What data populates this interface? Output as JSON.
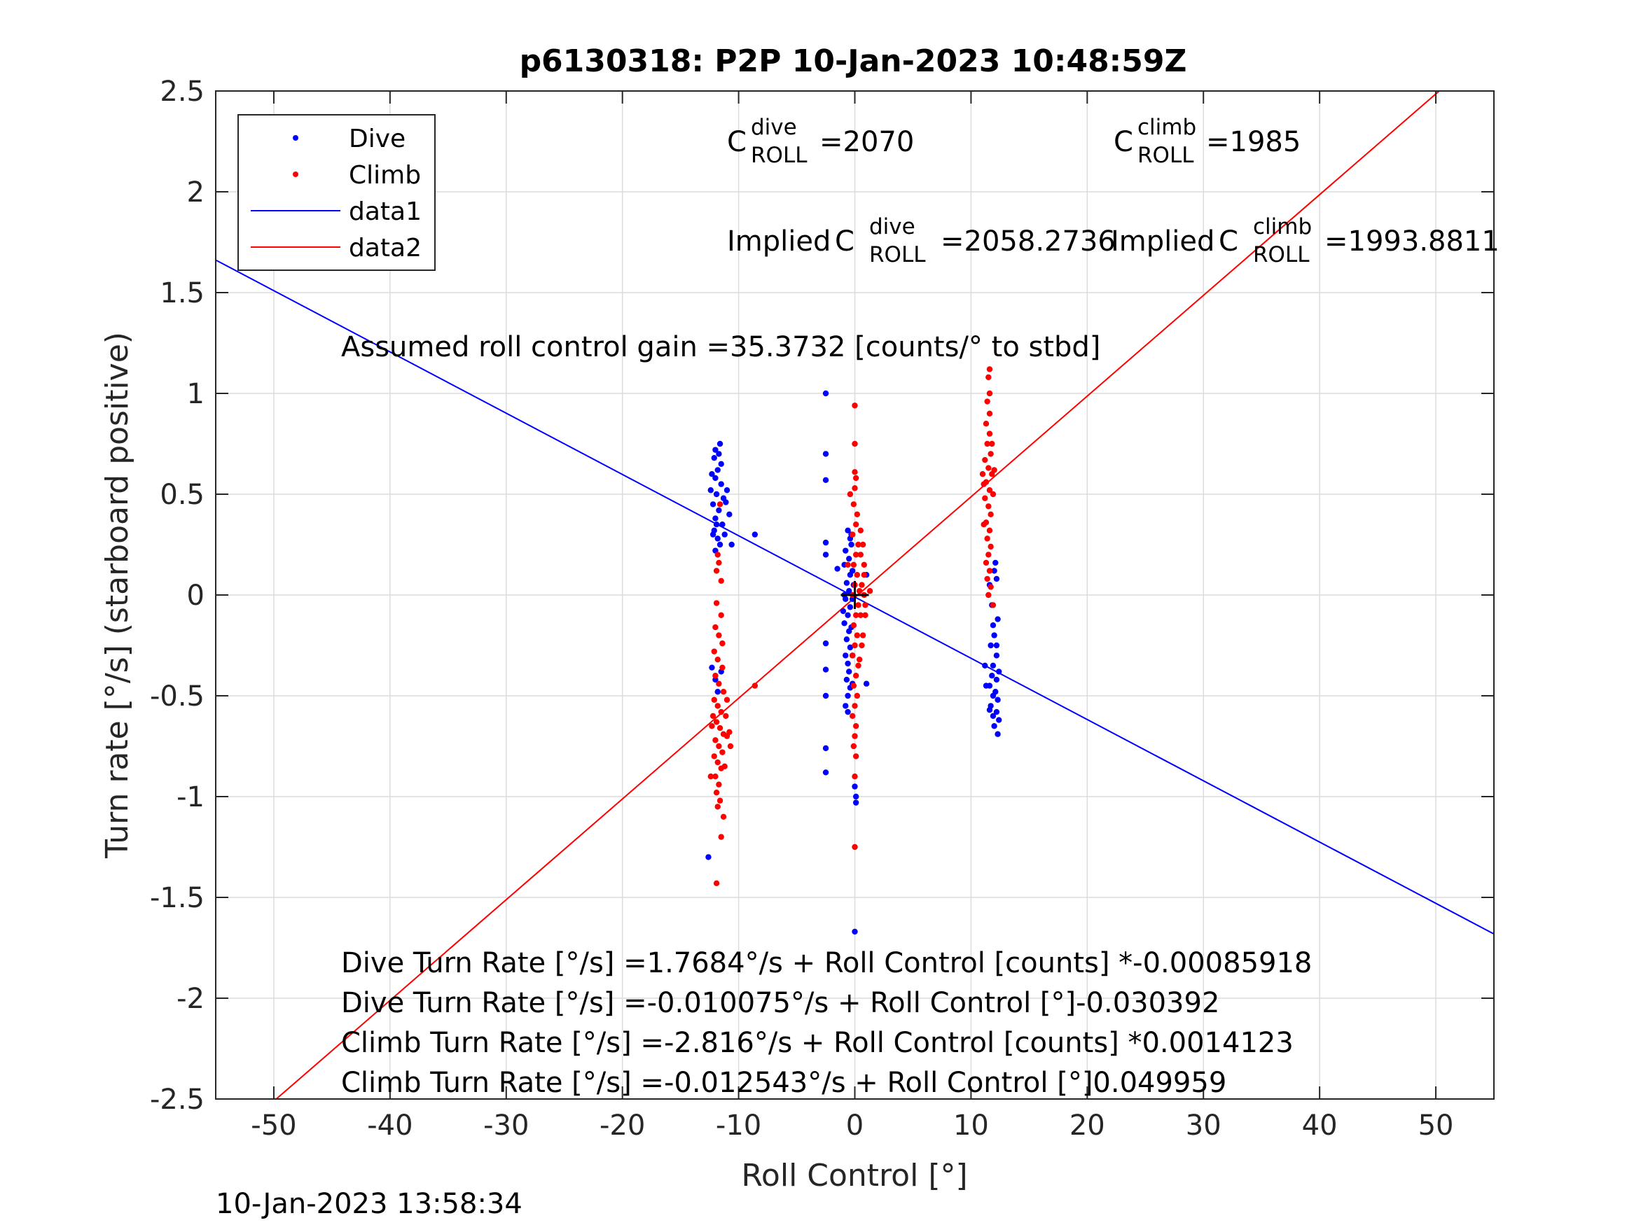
{
  "chart_data": {
    "type": "scatter",
    "title": "p6130318: P2P 10-Jan-2023 10:48:59Z",
    "xlabel": "Roll Control [°]",
    "ylabel": "Turn rate [°/s] (starboard positive)",
    "xlim": [
      -55,
      55
    ],
    "ylim": [
      -2.5,
      2.5
    ],
    "xticks": [
      -50,
      -40,
      -30,
      -20,
      -10,
      0,
      10,
      20,
      30,
      40,
      50
    ],
    "yticks": [
      -2.5,
      -2,
      -1.5,
      -1,
      -0.5,
      0,
      0.5,
      1,
      1.5,
      2,
      2.5
    ],
    "xtick_labels": [
      "-50",
      "-40",
      "-30",
      "-20",
      "-10",
      "0",
      "10",
      "20",
      "30",
      "40",
      "50"
    ],
    "ytick_labels": [
      "-2.5",
      "-2",
      "-1.5",
      "-1",
      "-0.5",
      "0",
      "0.5",
      "1",
      "1.5",
      "2",
      "2.5"
    ],
    "grid": true,
    "legend_location": "top-left",
    "series": [
      {
        "name": "Dive",
        "kind": "points",
        "color": "#0000ff",
        "points": [
          [
            -12,
            0.72
          ],
          [
            -11.6,
            0.75
          ],
          [
            -12.1,
            0.68
          ],
          [
            -11.8,
            0.62
          ],
          [
            -12,
            0.58
          ],
          [
            -11.5,
            0.55
          ],
          [
            -11.9,
            0.5
          ],
          [
            -12.2,
            0.45
          ],
          [
            -11.7,
            0.42
          ],
          [
            -12,
            0.38
          ],
          [
            -11.4,
            0.35
          ],
          [
            -12.1,
            0.32
          ],
          [
            -11.8,
            0.28
          ],
          [
            -11.6,
            0.25
          ],
          [
            -12,
            0.22
          ],
          [
            -11.3,
            0.48
          ],
          [
            -11.5,
            0.65
          ],
          [
            -12.3,
            0.6
          ],
          [
            -11.2,
            0.3
          ],
          [
            -11,
            0.52
          ],
          [
            -10.6,
            0.25
          ],
          [
            -10.8,
            0.4
          ],
          [
            -11.1,
            0.46
          ],
          [
            -12.4,
            0.52
          ],
          [
            -12.2,
            0.3
          ],
          [
            -11.7,
            0.7
          ],
          [
            -11.9,
            0.35
          ],
          [
            -8.6,
            0.3
          ],
          [
            -12.3,
            -0.36
          ],
          [
            -12,
            -0.42
          ],
          [
            -11.5,
            -0.38
          ],
          [
            -11.8,
            -0.48
          ],
          [
            -12.6,
            -1.3
          ],
          [
            -2.5,
            1.0
          ],
          [
            -2.5,
            0.7
          ],
          [
            -2.5,
            0.57
          ],
          [
            -2.5,
            0.26
          ],
          [
            -2.5,
            0.2
          ],
          [
            -1.5,
            0.13
          ],
          [
            -2.5,
            -0.24
          ],
          [
            -2.5,
            -0.37
          ],
          [
            -2.5,
            -0.5
          ],
          [
            -2.5,
            -0.76
          ],
          [
            -2.5,
            -0.88
          ],
          [
            -0.6,
            0.32
          ],
          [
            -0.4,
            0.28
          ],
          [
            -0.8,
            0.22
          ],
          [
            -0.5,
            0.18
          ],
          [
            -0.9,
            0.15
          ],
          [
            -0.4,
            0.1
          ],
          [
            -0.7,
            0.06
          ],
          [
            -0.5,
            0.02
          ],
          [
            -0.8,
            -0.02
          ],
          [
            -0.4,
            -0.06
          ],
          [
            -0.6,
            -0.1
          ],
          [
            -0.9,
            -0.14
          ],
          [
            -0.5,
            -0.18
          ],
          [
            -0.7,
            -0.22
          ],
          [
            -0.4,
            -0.26
          ],
          [
            -0.8,
            -0.3
          ],
          [
            -0.6,
            -0.34
          ],
          [
            -0.5,
            -0.38
          ],
          [
            -0.7,
            -0.42
          ],
          [
            -0.4,
            -0.46
          ],
          [
            -0.6,
            -0.5
          ],
          [
            -0.8,
            -0.55
          ],
          [
            -0.6,
            -0.58
          ],
          [
            -0.3,
            0.25
          ],
          [
            -0.2,
            0.12
          ],
          [
            -0.2,
            -0.02
          ],
          [
            -0.3,
            -0.16
          ],
          [
            -0.2,
            -0.3
          ],
          [
            -0.1,
            0.05
          ],
          [
            -0.9,
            0.0
          ],
          [
            -1.0,
            -0.08
          ],
          [
            -0.2,
            -0.44
          ],
          [
            -0.3,
            0.3
          ],
          [
            0.0,
            -0.95
          ],
          [
            0.1,
            -1.0
          ],
          [
            0.1,
            -1.03
          ],
          [
            0.0,
            -1.67
          ],
          [
            1.0,
            -0.44
          ],
          [
            1.0,
            0.1
          ],
          [
            11.6,
            0.05
          ],
          [
            12.1,
            0.16
          ],
          [
            12,
            0.12
          ],
          [
            12.2,
            0.08
          ],
          [
            11.8,
            -0.05
          ],
          [
            12.3,
            -0.12
          ],
          [
            12,
            -0.2
          ],
          [
            11.7,
            -0.25
          ],
          [
            12.2,
            -0.3
          ],
          [
            11.9,
            -0.35
          ],
          [
            12.4,
            -0.38
          ],
          [
            11.8,
            -0.4
          ],
          [
            12.2,
            -0.42
          ],
          [
            11.6,
            -0.45
          ],
          [
            12.1,
            -0.48
          ],
          [
            11.9,
            -0.5
          ],
          [
            12.3,
            -0.52
          ],
          [
            11.7,
            -0.55
          ],
          [
            12.2,
            -0.58
          ],
          [
            11.9,
            -0.6
          ],
          [
            12.4,
            -0.62
          ],
          [
            12,
            -0.65
          ],
          [
            12.3,
            -0.69
          ],
          [
            11.6,
            -0.57
          ],
          [
            11.2,
            -0.35
          ],
          [
            11.3,
            -0.45
          ],
          [
            11.9,
            -0.15
          ],
          [
            12.2,
            -0.25
          ]
        ]
      },
      {
        "name": "Climb",
        "kind": "points",
        "color": "#ff0000",
        "points": [
          [
            -11.6,
            0.45
          ],
          [
            -11.8,
            0.2
          ],
          [
            -11.7,
            0.16
          ],
          [
            -11.9,
            0.12
          ],
          [
            -11.5,
            0.07
          ],
          [
            -11.9,
            -0.04
          ],
          [
            -11.5,
            -0.1
          ],
          [
            -12,
            -0.16
          ],
          [
            -11.7,
            -0.2
          ],
          [
            -11.4,
            -0.24
          ],
          [
            -12.1,
            -0.28
          ],
          [
            -11.8,
            -0.32
          ],
          [
            -11.4,
            -0.36
          ],
          [
            -12,
            -0.4
          ],
          [
            -11.7,
            -0.44
          ],
          [
            -11.3,
            -0.48
          ],
          [
            -12.1,
            -0.52
          ],
          [
            -11.8,
            -0.55
          ],
          [
            -11.5,
            -0.58
          ],
          [
            -12.2,
            -0.6
          ],
          [
            -11.9,
            -0.63
          ],
          [
            -11.6,
            -0.66
          ],
          [
            -11.3,
            -0.69
          ],
          [
            -12,
            -0.72
          ],
          [
            -11.7,
            -0.75
          ],
          [
            -11.4,
            -0.78
          ],
          [
            -12.1,
            -0.8
          ],
          [
            -11.8,
            -0.83
          ],
          [
            -11.5,
            -0.86
          ],
          [
            -12,
            -0.9
          ],
          [
            -11.7,
            -0.94
          ],
          [
            -11.9,
            -0.98
          ],
          [
            -11.6,
            -1.02
          ],
          [
            -11.8,
            -1.05
          ],
          [
            -11.5,
            -1.2
          ],
          [
            -11.9,
            -1.43
          ],
          [
            -12.3,
            -0.65
          ],
          [
            -11.1,
            -0.6
          ],
          [
            -10.7,
            -0.75
          ],
          [
            -11,
            -0.7
          ],
          [
            -11.2,
            -0.85
          ],
          [
            -11,
            -0.52
          ],
          [
            -10.8,
            -0.68
          ],
          [
            -12.4,
            -0.9
          ],
          [
            -11.3,
            -1.1
          ],
          [
            -8.6,
            -0.45
          ],
          [
            -0.4,
            0.5
          ],
          [
            -0.6,
            0.15
          ],
          [
            0.0,
            0.94
          ],
          [
            0.0,
            0.75
          ],
          [
            0.0,
            0.61
          ],
          [
            0.1,
            0.58
          ],
          [
            0.0,
            0.53
          ],
          [
            -0.1,
            0.45
          ],
          [
            0.2,
            0.4
          ],
          [
            0.1,
            0.35
          ],
          [
            -0.2,
            0.3
          ],
          [
            0.3,
            0.25
          ],
          [
            0.1,
            0.2
          ],
          [
            -0.1,
            0.15
          ],
          [
            0.2,
            0.1
          ],
          [
            0.0,
            0.05
          ],
          [
            -0.2,
            0.0
          ],
          [
            0.3,
            -0.05
          ],
          [
            0.1,
            -0.1
          ],
          [
            -0.1,
            -0.15
          ],
          [
            0.2,
            -0.2
          ],
          [
            0.0,
            -0.25
          ],
          [
            -0.2,
            -0.3
          ],
          [
            0.3,
            -0.35
          ],
          [
            0.1,
            -0.4
          ],
          [
            -0.1,
            -0.45
          ],
          [
            0.2,
            -0.5
          ],
          [
            0.0,
            -0.55
          ],
          [
            -0.2,
            -0.6
          ],
          [
            0.1,
            -0.65
          ],
          [
            0.0,
            -0.7
          ],
          [
            -0.1,
            -0.75
          ],
          [
            0.1,
            -0.8
          ],
          [
            0.0,
            -0.9
          ],
          [
            0.0,
            -1.25
          ],
          [
            0.5,
            0.2
          ],
          [
            0.7,
            0.25
          ],
          [
            0.8,
            0.1
          ],
          [
            0.6,
            0.05
          ],
          [
            0.9,
            -0.05
          ],
          [
            0.5,
            -0.1
          ],
          [
            0.7,
            -0.2
          ],
          [
            0.8,
            0.15
          ],
          [
            0.6,
            -0.25
          ],
          [
            0.4,
            0.02
          ],
          [
            1.3,
            0.02
          ],
          [
            0.8,
            0.0
          ],
          [
            0.9,
            -0.1
          ],
          [
            0.5,
            0.32
          ],
          [
            0.4,
            -0.32
          ],
          [
            11.6,
            1.12
          ],
          [
            11.5,
            1.08
          ],
          [
            11.6,
            1.0
          ],
          [
            11.4,
            0.96
          ],
          [
            11.6,
            0.9
          ],
          [
            11.3,
            0.85
          ],
          [
            11.6,
            0.8
          ],
          [
            11.4,
            0.75
          ],
          [
            11.7,
            0.7
          ],
          [
            11.2,
            0.67
          ],
          [
            11.5,
            0.63
          ],
          [
            11.8,
            0.6
          ],
          [
            11.3,
            0.56
          ],
          [
            11.6,
            0.52
          ],
          [
            11.2,
            0.48
          ],
          [
            11.5,
            0.44
          ],
          [
            11.7,
            0.4
          ],
          [
            11.3,
            0.36
          ],
          [
            11.6,
            0.32
          ],
          [
            11.4,
            0.28
          ],
          [
            11.7,
            0.24
          ],
          [
            11.5,
            0.2
          ],
          [
            11.3,
            0.16
          ],
          [
            11.6,
            0.12
          ],
          [
            11.4,
            0.08
          ],
          [
            11.7,
            0.04
          ],
          [
            11.5,
            0.0
          ],
          [
            11.9,
            -0.05
          ],
          [
            11.1,
            0.55
          ],
          [
            11.0,
            0.6
          ],
          [
            11.8,
            0.75
          ],
          [
            11.9,
            0.5
          ],
          [
            12.0,
            0.62
          ],
          [
            11.1,
            0.35
          ]
        ]
      },
      {
        "name": "data1",
        "kind": "line",
        "color": "#0000ff",
        "x": [
          -55,
          55
        ],
        "y": [
          1.6616,
          -1.6813
        ]
      },
      {
        "name": "data2",
        "kind": "line",
        "color": "#ff0000",
        "x": [
          -55,
          55
        ],
        "y": [
          -2.7603,
          2.7352
        ]
      }
    ],
    "marker": {
      "x": 0,
      "y": 0,
      "symbol": "+"
    },
    "annotations": {
      "c_dive": {
        "prefix": "",
        "base": "C",
        "sup": "dive",
        "sub": "ROLL",
        "value": "=2070"
      },
      "c_climb": {
        "prefix": "",
        "base": "C",
        "sup": "climb",
        "sub": "ROLL",
        "value": "=1985"
      },
      "implied_dive": {
        "prefix": "Implied ",
        "base": "C",
        "sup": "dive",
        "sub": "ROLL",
        "value": "=2058.2736"
      },
      "implied_climb": {
        "prefix": "Implied ",
        "base": "C",
        "sup": "climb",
        "sub": "ROLL",
        "value": "=1993.8811"
      },
      "gain": "Assumed roll control gain =35.3732 [counts/° to stbd]",
      "eq1": "Dive Turn Rate [°/s] =1.7684°/s + Roll Control [counts] *-0.00085918",
      "eq2": "Dive Turn Rate [°/s] =-0.010075°/s + Roll Control [°]-0.030392",
      "eq3": "Climb Turn Rate [°/s] =-2.816°/s + Roll Control [counts] *0.0014123",
      "eq4": "Climb Turn Rate [°/s] =-0.012543°/s + Roll Control [°]0.049959"
    }
  },
  "footer_timestamp": "10-Jan-2023 13:58:34"
}
